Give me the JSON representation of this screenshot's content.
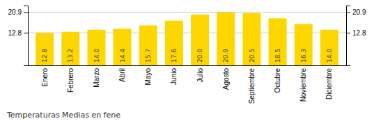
{
  "chart_data": {
    "type": "bar",
    "title": "Temperaturas Medias en fene",
    "categories": [
      "Enero",
      "Febrero",
      "Marzo",
      "Abril",
      "Mayo",
      "Junio",
      "Julio",
      "Agosto",
      "Septiembre",
      "Octubre",
      "Noviembre",
      "Diciembre"
    ],
    "values": [
      12.8,
      13.2,
      14.0,
      14.4,
      15.7,
      17.6,
      20.0,
      20.9,
      20.5,
      18.5,
      16.3,
      14.0
    ],
    "value_labels": [
      "12.8",
      "13.2",
      "14.0",
      "14.4",
      "15.7",
      "17.6",
      "20.0",
      "20.9",
      "20.5",
      "18.5",
      "16.3",
      "14.0"
    ],
    "color": "#FFD700",
    "data_labels": true,
    "ylim": [
      0,
      23.5
    ],
    "yticks": [
      12.8,
      20.9
    ],
    "grid": true
  }
}
